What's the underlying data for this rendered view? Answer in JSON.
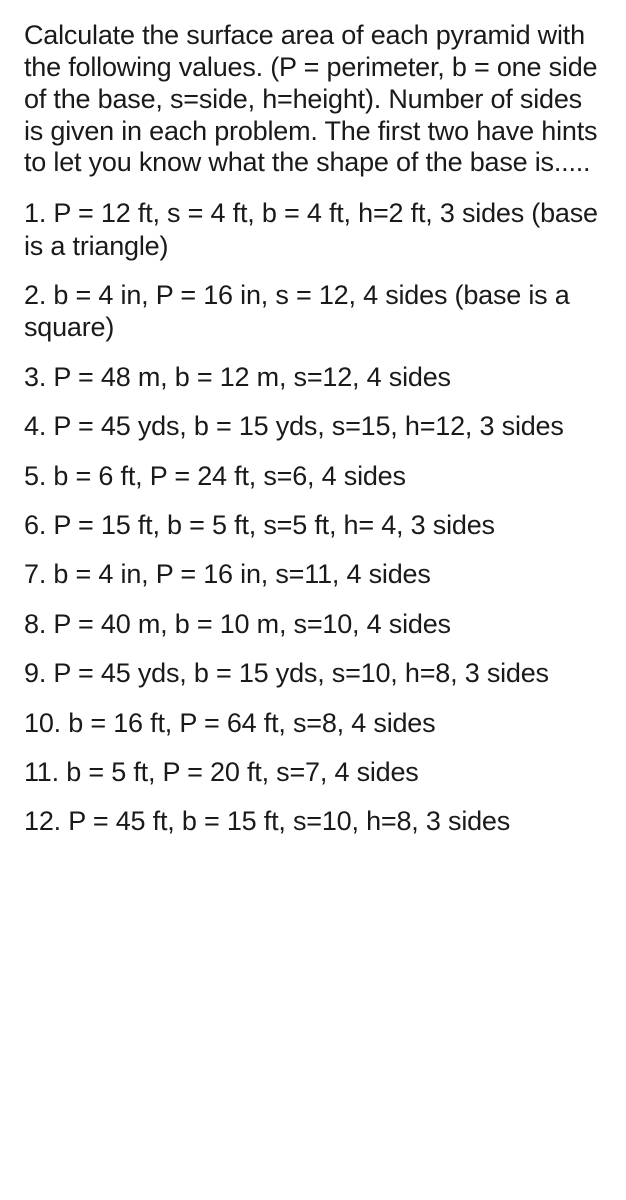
{
  "intro": "Calculate the surface area of each pyramid with the following values. (P = perimeter, b = one side of the base, s=side, h=height). Number of sides is given in each problem. The first two have hints to let you know what the shape of the base is.....",
  "problems": [
    "1. P = 12 ft, s = 4 ft, b = 4 ft, h=2 ft, 3 sides (base is a triangle)",
    "2. b = 4 in, P = 16 in, s = 12, 4 sides (base is a square)",
    "3. P = 48 m, b = 12 m, s=12, 4 sides",
    "4. P = 45 yds, b = 15 yds, s=15, h=12, 3 sides",
    "5. b = 6 ft, P = 24 ft, s=6, 4 sides",
    "6. P = 15 ft, b = 5 ft, s=5 ft, h= 4, 3 sides",
    "7. b = 4 in, P = 16 in, s=11, 4 sides",
    "8. P = 40 m, b = 10 m, s=10, 4 sides",
    "9. P = 45 yds, b = 15 yds, s=10, h=8, 3 sides",
    "10. b = 16 ft, P = 64 ft, s=8, 4 sides",
    "11. b = 5 ft, P = 20 ft, s=7, 4 sides",
    "12. P = 45 ft, b = 15 ft, s=10, h=8, 3 sides"
  ],
  "text_color": "#1a1a1a",
  "background_color": "#ffffff",
  "font_family": "Arial, Helvetica, sans-serif",
  "intro_fontsize": 27,
  "problem_fontsize": 27
}
